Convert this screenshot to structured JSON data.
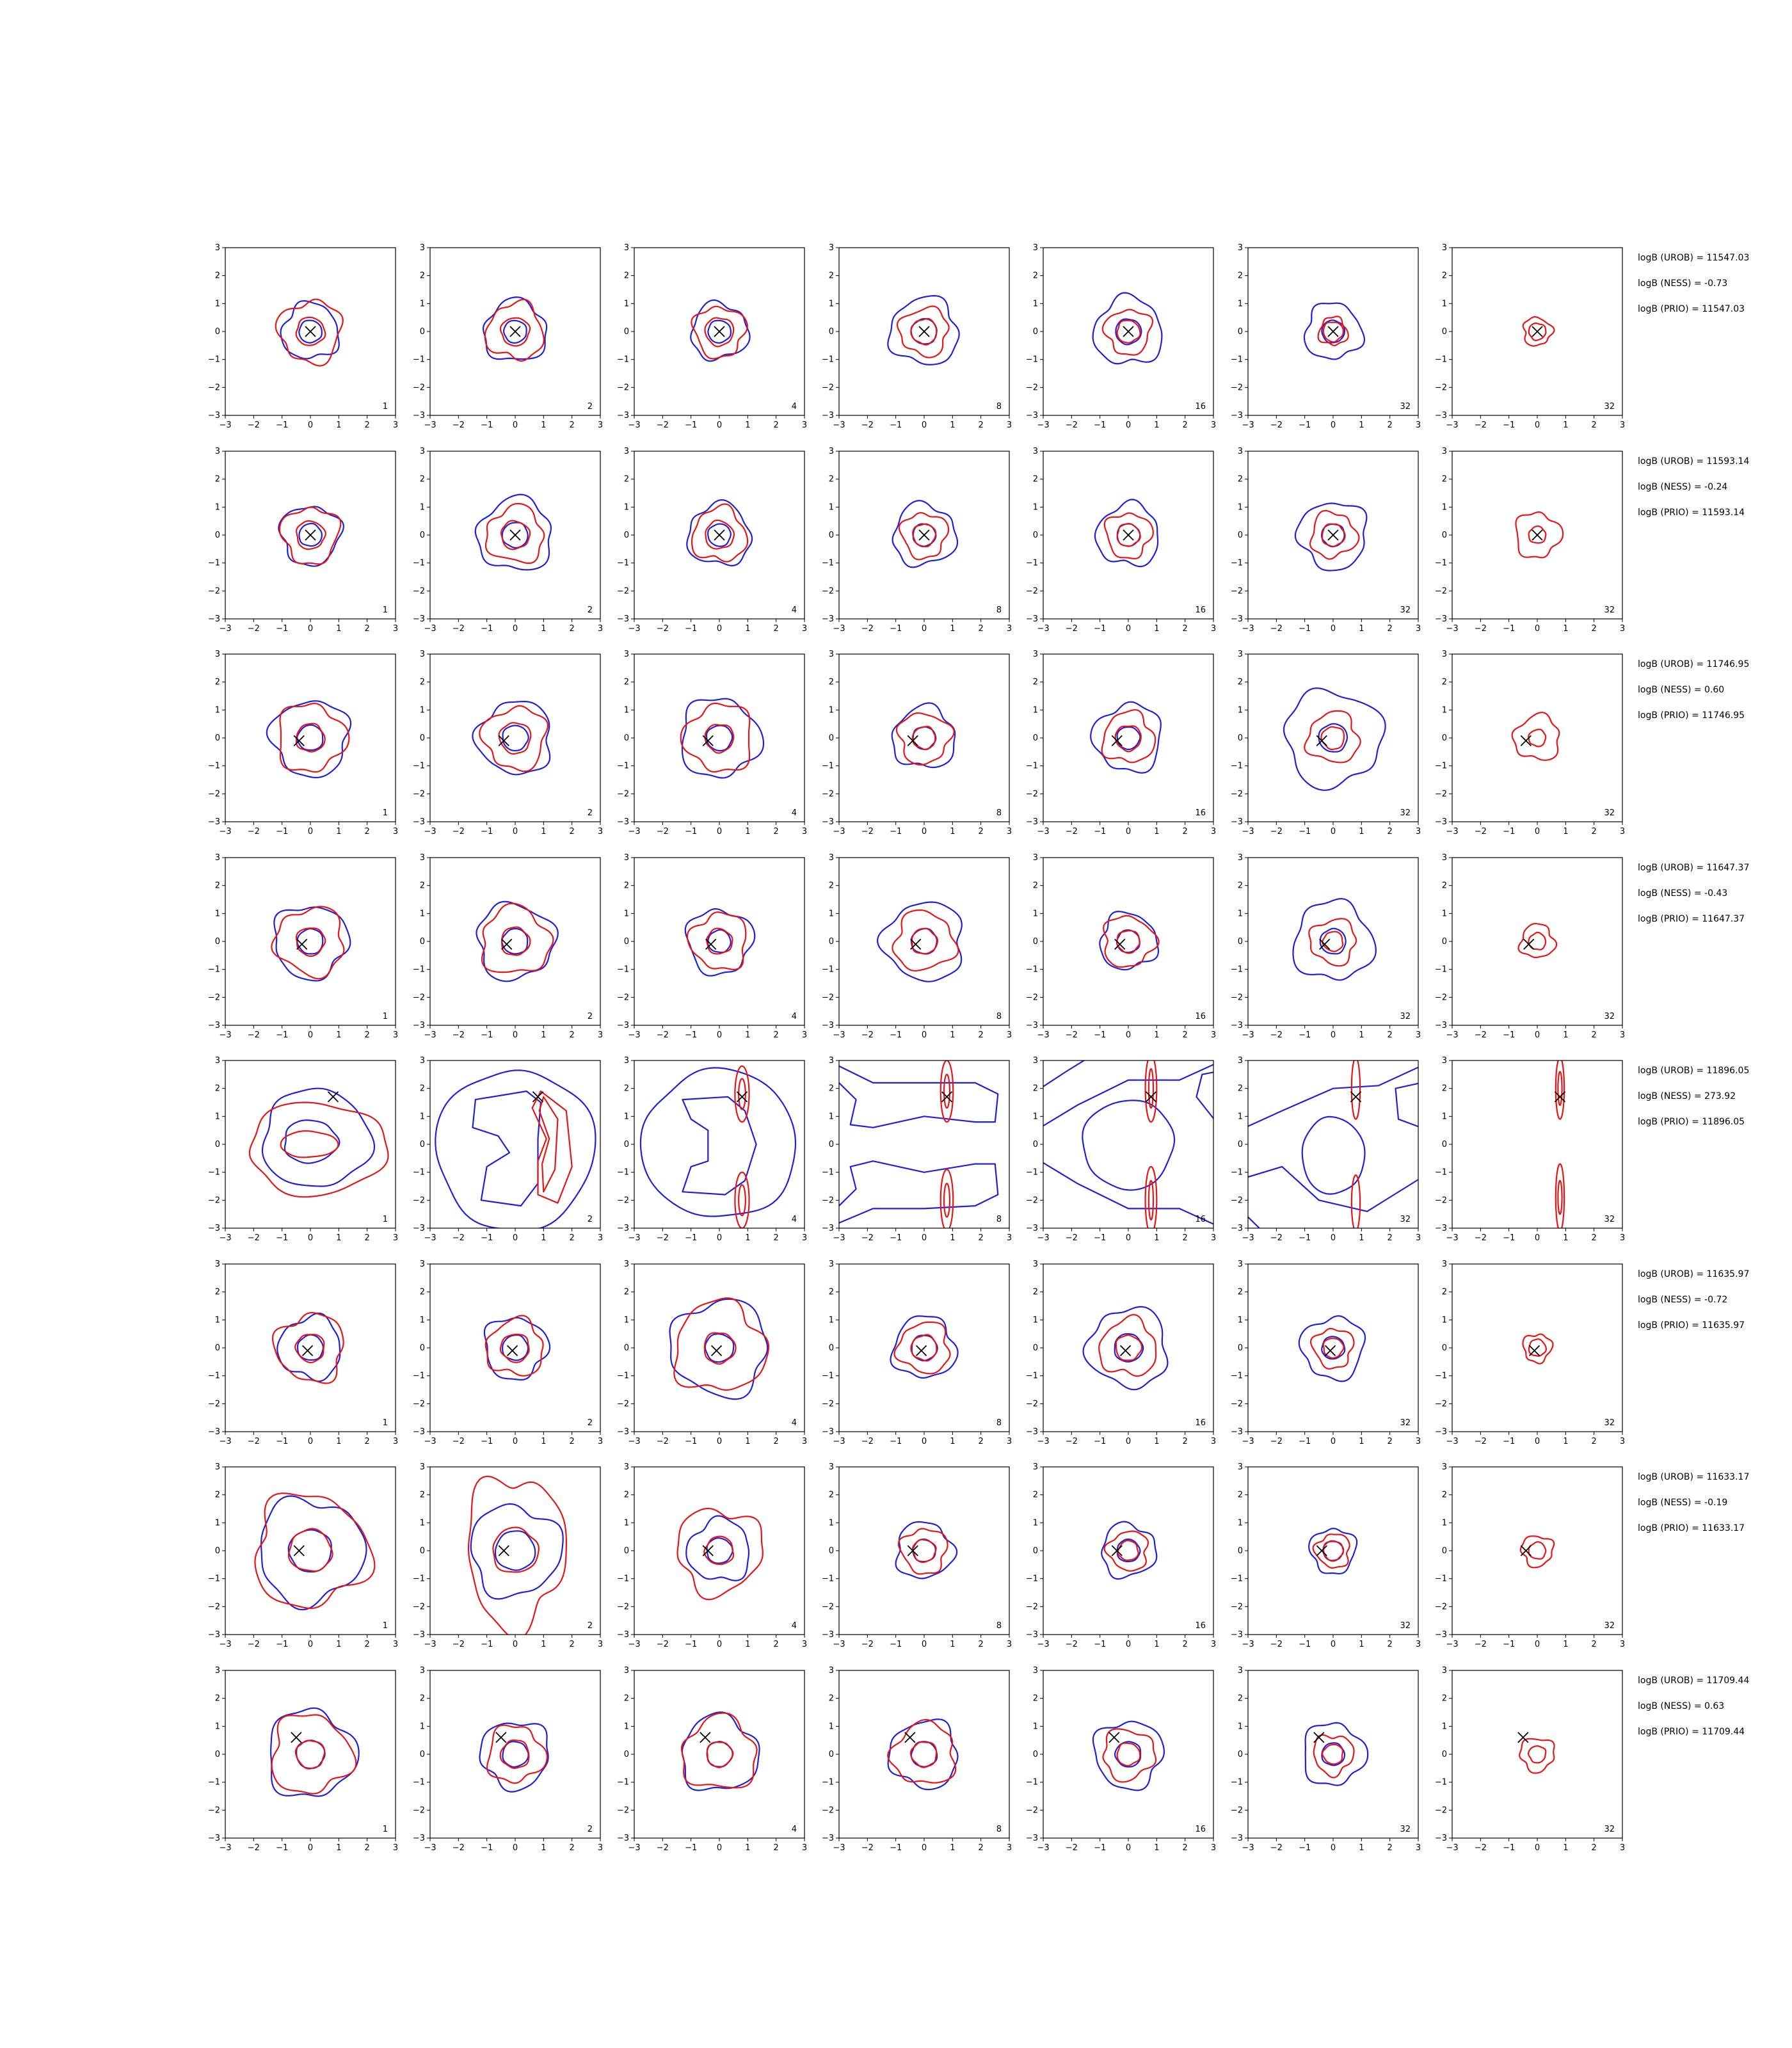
{
  "chart_data": {
    "type": "contour-grid",
    "rows": 8,
    "cols": 7,
    "axis": {
      "xlim": [
        -3,
        3
      ],
      "ylim": [
        -3,
        3
      ],
      "ticks": [
        -3,
        -2,
        -1,
        0,
        1,
        2,
        3
      ]
    },
    "tick_labels": [
      "−3",
      "−2",
      "−1",
      "0",
      "1",
      "2",
      "3"
    ],
    "column_counts": [
      "1",
      "2",
      "4",
      "8",
      "16",
      "32",
      "32"
    ],
    "colors": {
      "blue": "#1f1fe0",
      "red": "#e81515",
      "marker": "#000000"
    },
    "rows_data": [
      {
        "marker": [
          0,
          0
        ],
        "blue_r": [
          [
            1.0,
            0.4
          ],
          [
            1.1,
            0.4
          ],
          [
            1.0,
            0.4
          ],
          [
            1.2,
            0.45
          ],
          [
            1.2,
            0.45
          ],
          [
            1.0,
            0.4
          ],
          null
        ],
        "red_r": [
          [
            1.1,
            0.5
          ],
          [
            1.0,
            0.5
          ],
          [
            0.9,
            0.5
          ],
          [
            0.85,
            0.45
          ],
          [
            0.8,
            0.4
          ],
          [
            0.5,
            0.35
          ],
          [
            0.5,
            0.3
          ]
        ],
        "labels": [
          "logB (UROB) = 11547.03",
          "logB (NESS) = -0.73",
          "logB (PRIO) = 11547.03"
        ]
      },
      {
        "marker": [
          0,
          0
        ],
        "blue_r": [
          [
            1.05,
            0.4
          ],
          [
            1.3,
            0.45
          ],
          [
            1.1,
            0.4
          ],
          [
            1.1,
            0.4
          ],
          [
            1.1,
            0.4
          ],
          [
            1.2,
            0.4
          ],
          null
        ],
        "red_r": [
          [
            1.0,
            0.5
          ],
          [
            1.0,
            0.5
          ],
          [
            0.95,
            0.5
          ],
          [
            0.8,
            0.4
          ],
          [
            0.8,
            0.4
          ],
          [
            0.8,
            0.4
          ],
          [
            0.8,
            0.3
          ]
        ],
        "labels": [
          "logB (UROB) = 11593.14",
          "logB (NESS) = -0.24",
          "logB (PRIO) = 11593.14"
        ]
      },
      {
        "marker": [
          -0.4,
          -0.1
        ],
        "blue_r": [
          [
            1.35,
            0.45
          ],
          [
            1.3,
            0.45
          ],
          [
            1.4,
            0.45
          ],
          [
            1.1,
            0.4
          ],
          [
            1.2,
            0.4
          ],
          [
            1.7,
            0.5
          ],
          null
        ],
        "red_r": [
          [
            1.2,
            0.5
          ],
          [
            1.1,
            0.55
          ],
          [
            1.2,
            0.5
          ],
          [
            0.9,
            0.4
          ],
          [
            0.9,
            0.45
          ],
          [
            0.9,
            0.4
          ],
          [
            0.8,
            0.3
          ]
        ],
        "labels": [
          "logB (UROB) = 11746.95",
          "logB (NESS) = 0.60",
          "logB (PRIO) = 11746.95"
        ]
      },
      {
        "marker": [
          -0.3,
          -0.1
        ],
        "blue_r": [
          [
            1.3,
            0.45
          ],
          [
            1.35,
            0.45
          ],
          [
            1.15,
            0.4
          ],
          [
            1.4,
            0.45
          ],
          [
            1.0,
            0.4
          ],
          [
            1.4,
            0.45
          ],
          null
        ],
        "red_r": [
          [
            1.2,
            0.5
          ],
          [
            1.2,
            0.5
          ],
          [
            1.0,
            0.45
          ],
          [
            1.05,
            0.45
          ],
          [
            0.9,
            0.4
          ],
          [
            0.8,
            0.35
          ],
          [
            0.6,
            0.3
          ]
        ],
        "labels": [
          "logB (UROB) = 11647.37",
          "logB (NESS) = -0.43",
          "logB (PRIO) = 11647.37"
        ]
      },
      {
        "marker": [
          0.8,
          1.7
        ],
        "blue_r": null,
        "red_r": null,
        "labels": [
          "logB (UROB) = 11896.05",
          "logB (NESS) = 273.92",
          "logB (PRIO) = 11896.05"
        ]
      },
      {
        "marker": [
          -0.1,
          -0.1
        ],
        "blue_r": [
          [
            1.1,
            0.45
          ],
          [
            1.1,
            0.45
          ],
          [
            1.7,
            0.5
          ],
          [
            1.1,
            0.45
          ],
          [
            1.4,
            0.5
          ],
          [
            1.1,
            0.4
          ],
          null
        ],
        "red_r": [
          [
            1.2,
            0.5
          ],
          [
            1.0,
            0.5
          ],
          [
            1.6,
            0.55
          ],
          [
            0.9,
            0.45
          ],
          [
            1.0,
            0.45
          ],
          [
            0.7,
            0.35
          ],
          [
            0.5,
            0.3
          ]
        ],
        "labels": [
          "logB (UROB) = 11635.97",
          "logB (NESS) = -0.72",
          "logB (PRIO) = 11635.97"
        ]
      },
      {
        "marker": [
          -0.4,
          0
        ],
        "blue_r": [
          [
            1.85,
            0.75
          ],
          [
            1.6,
            0.7
          ],
          [
            1.1,
            0.45
          ],
          [
            1.0,
            0.4
          ],
          [
            0.95,
            0.4
          ],
          [
            0.8,
            0.35
          ],
          null
        ],
        "red_r": [
          [
            2.0,
            0.75
          ],
          [
            2.0,
            0.8
          ],
          [
            1.5,
            0.5
          ],
          [
            0.8,
            0.4
          ],
          [
            0.7,
            0.35
          ],
          [
            0.6,
            0.35
          ],
          [
            0.55,
            0.3
          ]
        ],
        "labels": [
          "logB (UROB) = 11633.17",
          "logB (NESS) = -0.19",
          "logB (PRIO) = 11633.17"
        ]
      },
      {
        "marker": [
          -0.5,
          0.6
        ],
        "blue_r": [
          [
            1.55,
            0.5
          ],
          [
            1.2,
            0.45
          ],
          [
            1.35,
            0.45
          ],
          [
            1.2,
            0.45
          ],
          [
            1.2,
            0.45
          ],
          [
            1.1,
            0.4
          ],
          null
        ],
        "red_r": [
          [
            1.4,
            0.5
          ],
          [
            1.0,
            0.5
          ],
          [
            1.3,
            0.45
          ],
          [
            1.1,
            0.45
          ],
          [
            0.9,
            0.4
          ],
          [
            0.7,
            0.35
          ],
          [
            0.6,
            0.3
          ]
        ],
        "labels": [
          "logB (UROB) = 11709.44",
          "logB (NESS) = 0.63",
          "logB (PRIO) = 11709.44"
        ]
      }
    ]
  }
}
